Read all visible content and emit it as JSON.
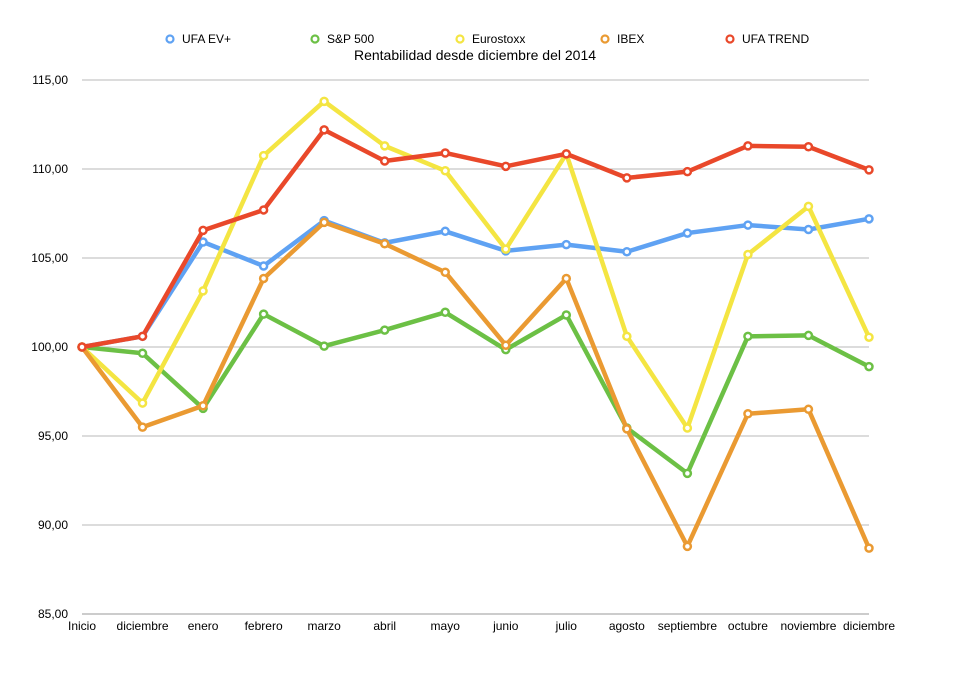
{
  "chart_data": {
    "type": "line",
    "title": "Rentabilidad desde diciembre del 2014",
    "xlabel": "",
    "ylabel": "",
    "ylim": [
      85,
      115
    ],
    "yticks": [
      "85,00",
      "90,00",
      "95,00",
      "100,00",
      "105,00",
      "110,00",
      "115,00"
    ],
    "ytick_values": [
      85,
      90,
      95,
      100,
      105,
      110,
      115
    ],
    "grid": true,
    "legend_position": "top",
    "categories": [
      "Inicio",
      "diciembre",
      "enero",
      "febrero",
      "marzo",
      "abril",
      "mayo",
      "junio",
      "julio",
      "agosto",
      "septiembre",
      "octubre",
      "noviembre",
      "diciembre"
    ],
    "series": [
      {
        "name": "UFA EV+",
        "color": "#5fa2f3",
        "values": [
          100,
          100.6,
          105.9,
          104.55,
          107.1,
          105.85,
          106.5,
          105.4,
          105.75,
          105.35,
          106.4,
          106.85,
          106.6,
          107.2
        ]
      },
      {
        "name": "S&P 500",
        "color": "#6cc045",
        "values": [
          100,
          99.65,
          96.55,
          101.85,
          100.05,
          100.95,
          101.95,
          99.85,
          101.8,
          95.45,
          92.9,
          100.6,
          100.65,
          98.9
        ]
      },
      {
        "name": "Eurostoxx",
        "color": "#f4e542",
        "values": [
          100,
          96.85,
          103.15,
          110.75,
          113.8,
          111.3,
          109.9,
          105.5,
          110.85,
          100.6,
          95.45,
          105.2,
          107.9,
          100.55
        ]
      },
      {
        "name": "IBEX",
        "color": "#ea9a32",
        "values": [
          100,
          95.5,
          96.7,
          103.85,
          107.0,
          105.8,
          104.2,
          100.1,
          103.85,
          95.4,
          88.8,
          96.25,
          96.5,
          88.7
        ]
      },
      {
        "name": "UFA TREND",
        "color": "#e9482a",
        "values": [
          100,
          100.6,
          106.55,
          107.7,
          112.2,
          110.45,
          110.9,
          110.15,
          110.85,
          109.5,
          109.85,
          111.3,
          111.25,
          109.95
        ]
      }
    ]
  }
}
